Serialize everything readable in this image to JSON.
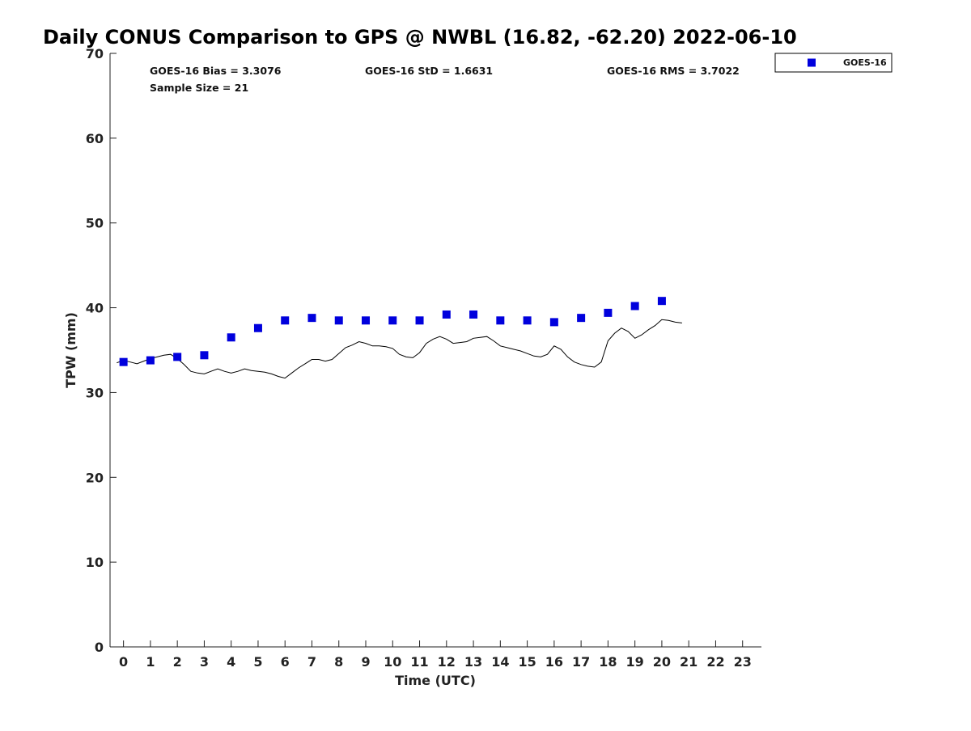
{
  "chart_data": {
    "type": "scatter",
    "title": "Daily CONUS Comparison to GPS @ NWBL (16.82, -62.20) 2022-06-10",
    "xlabel": "Time (UTC)",
    "ylabel": "TPW (mm)",
    "xlim": [
      -0.5,
      23.7
    ],
    "ylim": [
      0,
      70
    ],
    "xticks": [
      0,
      1,
      2,
      3,
      4,
      5,
      6,
      7,
      8,
      9,
      10,
      11,
      12,
      13,
      14,
      15,
      16,
      17,
      18,
      19,
      20,
      21,
      22,
      23
    ],
    "yticks": [
      0,
      10,
      20,
      30,
      40,
      50,
      60,
      70
    ],
    "grid": false,
    "legend_position": "top-right",
    "stats": {
      "bias": "GOES-16 Bias = 3.3076",
      "std": "GOES-16 StD = 1.6631",
      "rms": "GOES-16 RMS = 3.7022",
      "sample_size": "Sample Size = 21"
    },
    "series": [
      {
        "name": "GOES-16",
        "kind": "scatter",
        "marker": "square",
        "color": "#0000dd",
        "x": [
          0,
          1,
          2,
          3,
          4,
          5,
          6,
          7,
          8,
          9,
          10,
          11,
          12,
          13,
          14,
          15,
          16,
          17,
          18,
          19,
          20
        ],
        "y": [
          33.6,
          33.8,
          34.2,
          34.4,
          36.5,
          37.6,
          38.5,
          38.8,
          38.5,
          38.5,
          38.5,
          38.5,
          39.2,
          39.2,
          38.5,
          38.5,
          38.3,
          38.8,
          39.4,
          40.2,
          40.8
        ]
      },
      {
        "kind": "line",
        "color": "#000000",
        "x": [
          -0.25,
          0,
          0.25,
          0.5,
          0.75,
          1,
          1.25,
          1.5,
          1.75,
          2,
          2.25,
          2.5,
          2.75,
          3,
          3.25,
          3.5,
          3.75,
          4,
          4.25,
          4.5,
          4.75,
          5,
          5.25,
          5.5,
          5.75,
          6,
          6.25,
          6.5,
          6.75,
          7,
          7.25,
          7.5,
          7.75,
          8,
          8.25,
          8.5,
          8.75,
          9,
          9.25,
          9.5,
          9.75,
          10,
          10.25,
          10.5,
          10.75,
          11,
          11.25,
          11.5,
          11.75,
          12,
          12.25,
          12.5,
          12.75,
          13,
          13.25,
          13.5,
          13.75,
          14,
          14.25,
          14.5,
          14.75,
          15,
          15.25,
          15.5,
          15.75,
          16,
          16.25,
          16.5,
          16.75,
          17,
          17.25,
          17.5,
          17.75,
          18,
          18.25,
          18.5,
          18.75,
          19,
          19.25,
          19.5,
          19.75,
          20,
          20.25,
          20.5,
          20.75
        ],
        "y": [
          33.5,
          33.8,
          33.6,
          33.4,
          33.7,
          34.0,
          34.2,
          34.4,
          34.5,
          34.0,
          33.3,
          32.5,
          32.3,
          32.2,
          32.5,
          32.8,
          32.5,
          32.3,
          32.5,
          32.8,
          32.6,
          32.5,
          32.4,
          32.2,
          31.9,
          31.7,
          32.3,
          32.9,
          33.4,
          33.9,
          33.9,
          33.7,
          33.9,
          34.6,
          35.3,
          35.6,
          36.0,
          35.8,
          35.5,
          35.5,
          35.4,
          35.2,
          34.5,
          34.2,
          34.1,
          34.7,
          35.8,
          36.3,
          36.6,
          36.3,
          35.8,
          35.9,
          36.0,
          36.4,
          36.5,
          36.6,
          36.1,
          35.5,
          35.3,
          35.1,
          34.9,
          34.6,
          34.3,
          34.2,
          34.5,
          35.5,
          35.1,
          34.2,
          33.6,
          33.3,
          33.1,
          33.0,
          33.6,
          36.1,
          37.0,
          37.6,
          37.2,
          36.4,
          36.8,
          37.4,
          37.9,
          38.6,
          38.5,
          38.3,
          38.2
        ]
      }
    ]
  }
}
